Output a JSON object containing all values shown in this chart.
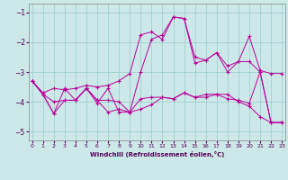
{
  "xlabel": "Windchill (Refroidissement éolien,°C)",
  "bg_color": "#cce8e8",
  "grid_color": "#99cccc",
  "line_color": "#bb0099",
  "xlim": [
    -0.3,
    23.3
  ],
  "ylim": [
    -5.3,
    -0.7
  ],
  "yticks": [
    -5,
    -4,
    -3,
    -2,
    -1
  ],
  "xticks": [
    0,
    1,
    2,
    3,
    4,
    5,
    6,
    7,
    8,
    9,
    10,
    11,
    12,
    13,
    14,
    15,
    16,
    17,
    18,
    19,
    20,
    21,
    22,
    23
  ],
  "series": [
    [
      -3.3,
      -3.7,
      -3.55,
      -3.6,
      -3.55,
      -3.45,
      -3.5,
      -3.45,
      -3.3,
      -3.05,
      -1.75,
      -1.65,
      -1.9,
      -1.15,
      -1.2,
      -2.5,
      -2.6,
      -2.35,
      -2.8,
      -2.65,
      -1.8,
      -2.95,
      -3.05,
      -3.05
    ],
    [
      -3.3,
      -3.75,
      -4.0,
      -3.95,
      -3.95,
      -3.55,
      -3.95,
      -3.95,
      -4.0,
      -4.35,
      -4.25,
      -4.1,
      -3.85,
      -3.9,
      -3.7,
      -3.85,
      -3.85,
      -3.75,
      -3.75,
      -4.0,
      -4.15,
      -4.5,
      -4.7,
      -4.7
    ],
    [
      -3.3,
      -3.75,
      -4.4,
      -3.55,
      -3.95,
      -3.55,
      -4.05,
      -3.55,
      -4.35,
      -4.35,
      -3.0,
      -1.9,
      -1.75,
      -1.15,
      -1.2,
      -2.7,
      -2.6,
      -2.35,
      -3.0,
      -2.65,
      -2.65,
      -3.0,
      -4.7,
      -4.7
    ],
    [
      -3.3,
      -3.75,
      -4.4,
      -3.95,
      -3.95,
      -3.55,
      -3.95,
      -4.35,
      -4.25,
      -4.35,
      -3.9,
      -3.85,
      -3.85,
      -3.9,
      -3.7,
      -3.85,
      -3.75,
      -3.75,
      -3.9,
      -3.95,
      -4.05,
      -3.0,
      -4.7,
      -4.7
    ]
  ]
}
